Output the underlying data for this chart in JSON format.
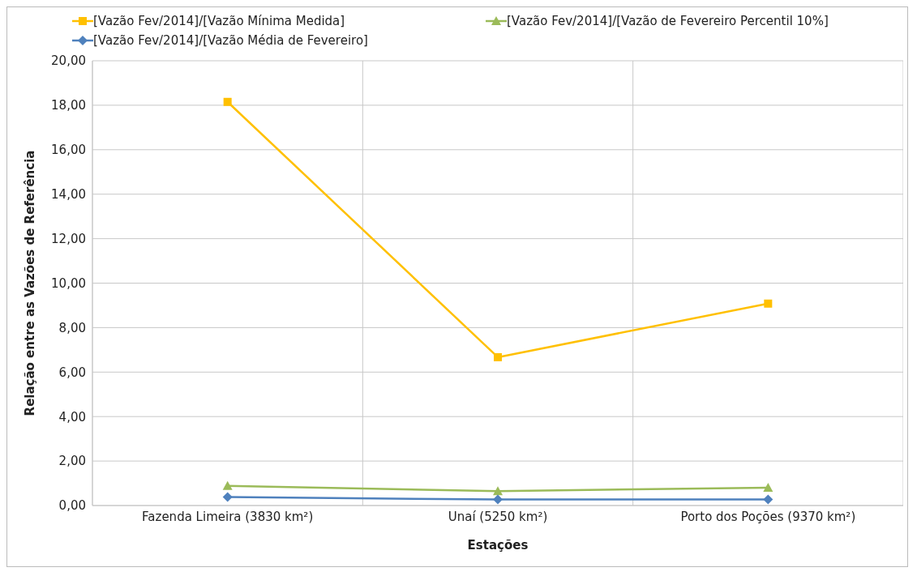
{
  "chart_data": {
    "type": "line",
    "xlabel": "Estações",
    "ylabel": "Relação entre as Vazões de Referência",
    "categories": [
      "Fazenda Limeira (3830 km²)",
      "Unaí (5250 km²)",
      "Porto dos Poções (9370 km²)"
    ],
    "series": [
      {
        "name": "[Vazão Fev/2014]/[Vazão Mínima Medida]",
        "color": "#ffc000",
        "marker": "square",
        "values": [
          18.15,
          6.67,
          9.08
        ]
      },
      {
        "name": "[Vazão Fev/2014]/[Vazão de Fevereiro Percentil 10%]",
        "color": "#9bbb59",
        "marker": "triangle",
        "values": [
          0.88,
          0.65,
          0.8
        ]
      },
      {
        "name": "[Vazão Fev/2014]/[Vazão Média de Fevereiro]",
        "color": "#4f81bd",
        "marker": "diamond",
        "values": [
          0.38,
          0.27,
          0.27
        ]
      }
    ],
    "ylim": [
      0,
      20
    ],
    "yticks": [
      {
        "value": 0,
        "label": "0,00"
      },
      {
        "value": 2,
        "label": "2,00"
      },
      {
        "value": 4,
        "label": "4,00"
      },
      {
        "value": 6,
        "label": "6,00"
      },
      {
        "value": 8,
        "label": "8,00"
      },
      {
        "value": 10,
        "label": "10,00"
      },
      {
        "value": 12,
        "label": "12,00"
      },
      {
        "value": 14,
        "label": "14,00"
      },
      {
        "value": 16,
        "label": "16,00"
      },
      {
        "value": 18,
        "label": "18,00"
      },
      {
        "value": 20,
        "label": "20,00"
      }
    ],
    "grid": true,
    "legend": "top",
    "line_style": "solid"
  }
}
